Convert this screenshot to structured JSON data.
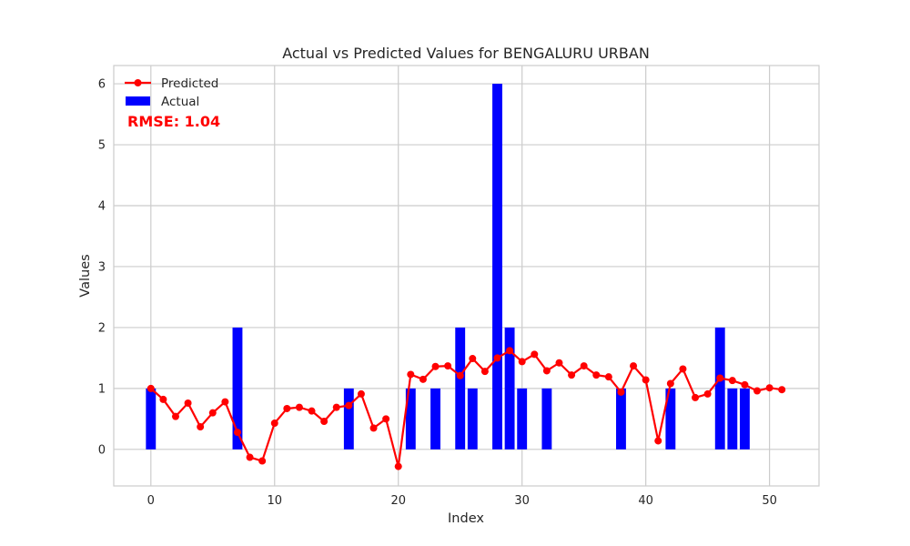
{
  "chart_data": {
    "type": "bar+line",
    "title": "Actual vs Predicted Values for BENGALURU URBAN",
    "xlabel": "Index",
    "ylabel": "Values",
    "xlim": [
      -3,
      54
    ],
    "ylim": [
      -0.6,
      6.3
    ],
    "xticks": [
      0,
      10,
      20,
      30,
      40,
      50
    ],
    "yticks": [
      0,
      1,
      2,
      3,
      4,
      5,
      6
    ],
    "grid": true,
    "legend_position": "top-left",
    "annotation": {
      "text": "RMSE: 1.04",
      "color": "#ff0000"
    },
    "series": [
      {
        "name": "Actual",
        "type": "bar",
        "color": "#0000ff",
        "x": [
          0,
          7,
          16,
          21,
          23,
          25,
          26,
          28,
          29,
          30,
          32,
          38,
          42,
          46,
          47,
          48
        ],
        "values": [
          1,
          2,
          1,
          1,
          1,
          2,
          1,
          6,
          2,
          1,
          1,
          1,
          1,
          2,
          1,
          1
        ]
      },
      {
        "name": "Predicted",
        "type": "line",
        "marker": "circle",
        "color": "#ff0000",
        "x": [
          0,
          1,
          2,
          3,
          4,
          5,
          6,
          7,
          8,
          9,
          10,
          11,
          12,
          13,
          14,
          15,
          16,
          17,
          18,
          19,
          20,
          21,
          22,
          23,
          24,
          25,
          26,
          27,
          28,
          29,
          30,
          31,
          32,
          33,
          34,
          35,
          36,
          37,
          38,
          39,
          40,
          41,
          42,
          43,
          44,
          45,
          46,
          47,
          48,
          49,
          50,
          51
        ],
        "values": [
          1.0,
          0.82,
          0.54,
          0.76,
          0.37,
          0.6,
          0.78,
          0.28,
          -0.13,
          -0.19,
          0.43,
          0.67,
          0.69,
          0.63,
          0.46,
          0.69,
          0.72,
          0.91,
          0.35,
          0.5,
          -0.28,
          1.23,
          1.15,
          1.36,
          1.37,
          1.21,
          1.49,
          1.28,
          1.5,
          1.62,
          1.44,
          1.56,
          1.29,
          1.42,
          1.22,
          1.37,
          1.22,
          1.19,
          0.94,
          1.37,
          1.14,
          0.14,
          1.08,
          1.32,
          0.85,
          0.91,
          1.17,
          1.13,
          1.06,
          0.96,
          1.01,
          0.98
        ]
      }
    ]
  }
}
